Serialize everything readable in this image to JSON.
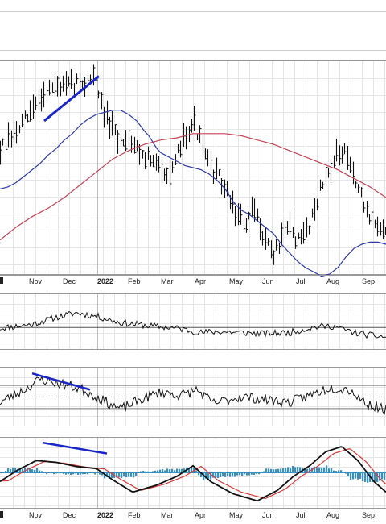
{
  "chart_data": {
    "type": "line",
    "panels": [
      {
        "name": "price",
        "chart_kind": "ohlc-bars",
        "ylim": [
          0,
          100
        ],
        "moving_averages": [
          {
            "color": "#2d3aa8",
            "x": [
              0,
              10,
              20,
              30,
              40,
              50,
              60,
              70,
              80,
              90,
              95,
              100,
              110,
              120,
              130,
              140,
              150,
              160,
              170,
              180,
              185,
              190,
              195,
              200,
              210,
              220,
              230,
              240,
              250,
              260,
              270,
              280,
              290,
              300,
              310,
              320,
              330,
              340,
              350,
              360,
              370,
              380,
              390,
              400,
              410,
              420,
              430,
              440,
              450,
              460,
              470,
              480
            ],
            "y": [
              40,
              41,
              43,
              46,
              49,
              52,
              56,
              59,
              63,
              66,
              68,
              70,
              73,
              75,
              76,
              77,
              77,
              75,
              72,
              67,
              65,
              62,
              59,
              57,
              55,
              53,
              51,
              50,
              49,
              47,
              44,
              40,
              34,
              30,
              28,
              25,
              22,
              19,
              14,
              10,
              6,
              3,
              1,
              -1,
              0,
              3,
              8,
              12,
              14,
              15,
              15,
              14
            ]
          },
          {
            "color": "#c2455a",
            "x": [
              0,
              20,
              40,
              60,
              80,
              100,
              120,
              140,
              160,
              180,
              200,
              220,
              240,
              260,
              280,
              300,
              320,
              340,
              360,
              380,
              400,
              420,
              440,
              460,
              480
            ],
            "y": [
              16,
              22,
              27,
              31,
              36,
              42,
              48,
              54,
              58,
              61,
              63,
              64,
              66,
              66,
              66,
              65,
              63,
              61,
              58,
              55,
              52,
              49,
              45,
              41,
              36
            ]
          }
        ],
        "trendline": {
          "color": "#1a25c8",
          "x": [
            55,
            123
          ],
          "y": [
            72,
            93
          ]
        }
      },
      {
        "name": "relative-strength",
        "ylim": [
          0,
          100
        ],
        "reference_level": 40
      },
      {
        "name": "oscillator",
        "ylim": [
          0,
          100
        ],
        "reference_levels": [
          70,
          50,
          30
        ],
        "trendline": {
          "color": "#1a25c8",
          "x": [
            40,
            112
          ],
          "y": [
            90,
            62
          ]
        }
      },
      {
        "name": "macd",
        "ylim": [
          -100,
          100
        ],
        "line_colors": [
          "#111111",
          "#d63a3a"
        ],
        "histogram_color": "#3a8fbd",
        "trendline": {
          "color": "#1a25c8",
          "x": [
            53,
            133
          ],
          "y": [
            86,
            55
          ]
        }
      }
    ],
    "x_tick_labels": [
      "Nov",
      "Dec",
      "2022",
      "Feb",
      "Mar",
      "Apr",
      "May",
      "Jun",
      "Jul",
      "Aug",
      "Sep"
    ],
    "grid": true
  }
}
